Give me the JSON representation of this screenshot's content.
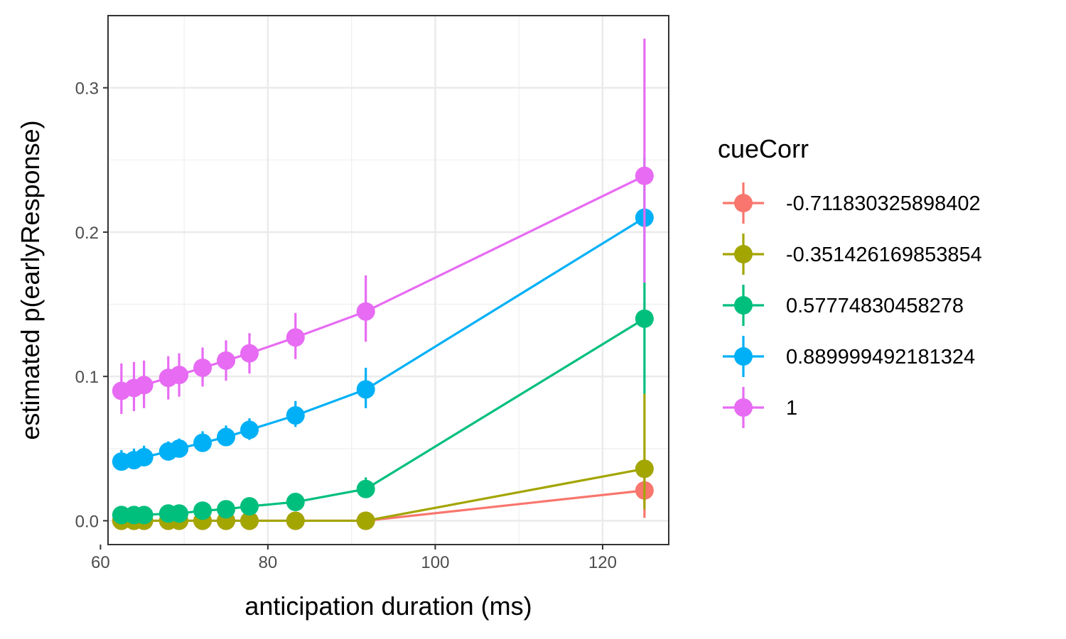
{
  "chart_data": {
    "type": "line",
    "title": "",
    "xlabel": "anticipation duration (ms)",
    "ylabel": "estimated p(earlyResponse)",
    "xlim": [
      60.9,
      127.9
    ],
    "ylim": [
      -0.0165,
      0.35
    ],
    "x_ticks": [
      60,
      80,
      100,
      120
    ],
    "y_ticks": [
      0.0,
      0.1,
      0.2,
      0.3
    ],
    "x_tick_labels": [
      "60",
      "80",
      "100",
      "120"
    ],
    "y_tick_labels": [
      "0.0",
      "0.1",
      "0.2",
      "0.3"
    ],
    "grid": true,
    "legend_position": "right",
    "legend_title": "cueCorr",
    "x": [
      62.5,
      64.0,
      65.2,
      68.1,
      69.4,
      72.2,
      75.0,
      77.8,
      83.3,
      91.7,
      125.0
    ],
    "series": [
      {
        "name": "-0.711830325898402",
        "color": "#F8766D",
        "x": [
          62.5,
          64.0,
          65.2,
          68.1,
          69.4,
          72.2,
          75.0,
          77.8,
          83.3,
          91.7,
          125.0
        ],
        "values": [
          0,
          0,
          0,
          0,
          0,
          0,
          0,
          0,
          0,
          0,
          0.021
        ],
        "lower": [
          0,
          0,
          0,
          0,
          0,
          0,
          0,
          0,
          0,
          0,
          0.002
        ],
        "upper": [
          0,
          0,
          0,
          0,
          0,
          0,
          0,
          0,
          0,
          0,
          0.038
        ]
      },
      {
        "name": "-0.351426169853854",
        "color": "#A3A500",
        "x": [
          62.5,
          64.0,
          65.2,
          68.1,
          69.4,
          72.2,
          75.0,
          77.8,
          83.3,
          91.7,
          125.0
        ],
        "values": [
          0,
          0,
          0,
          0,
          0,
          0,
          0,
          0,
          0,
          0,
          0.036
        ],
        "lower": [
          0,
          0,
          0,
          0,
          0,
          0,
          0,
          0,
          0,
          0,
          0.008
        ],
        "upper": [
          0,
          0,
          0,
          0,
          0,
          0,
          0,
          0,
          0,
          0,
          0.088
        ]
      },
      {
        "name": "0.57774830458278",
        "color": "#00BF7D",
        "x": [
          62.5,
          64.0,
          65.2,
          68.1,
          69.4,
          72.2,
          75.0,
          77.8,
          83.3,
          91.7,
          125.0
        ],
        "values": [
          0.004,
          0.004,
          0.004,
          0.005,
          0.005,
          0.007,
          0.008,
          0.01,
          0.013,
          0.022,
          0.14
        ],
        "lower": [
          0.002,
          0.002,
          0.002,
          0.003,
          0.003,
          0.004,
          0.005,
          0.006,
          0.009,
          0.016,
          0.088
        ],
        "upper": [
          0.006,
          0.006,
          0.006,
          0.007,
          0.007,
          0.009,
          0.011,
          0.013,
          0.017,
          0.03,
          0.165
        ]
      },
      {
        "name": "0.889999492181324",
        "color": "#00B0F6",
        "x": [
          62.5,
          64.0,
          65.2,
          68.1,
          69.4,
          72.2,
          75.0,
          77.8,
          83.3,
          91.7,
          125.0
        ],
        "values": [
          0.041,
          0.042,
          0.044,
          0.048,
          0.05,
          0.054,
          0.058,
          0.063,
          0.073,
          0.091,
          0.21
        ],
        "lower": [
          0.035,
          0.036,
          0.038,
          0.042,
          0.044,
          0.048,
          0.052,
          0.056,
          0.065,
          0.078,
          0.165
        ],
        "upper": [
          0.049,
          0.05,
          0.052,
          0.055,
          0.057,
          0.062,
          0.066,
          0.071,
          0.083,
          0.106,
          0.252
        ]
      },
      {
        "name": "1",
        "color": "#E76BF3",
        "x": [
          62.5,
          64.0,
          65.2,
          68.1,
          69.4,
          72.2,
          75.0,
          77.8,
          83.3,
          91.7,
          125.0
        ],
        "values": [
          0.09,
          0.092,
          0.094,
          0.099,
          0.101,
          0.106,
          0.111,
          0.116,
          0.127,
          0.145,
          0.239
        ],
        "lower": [
          0.074,
          0.076,
          0.078,
          0.084,
          0.086,
          0.093,
          0.097,
          0.102,
          0.112,
          0.124,
          0.165
        ],
        "upper": [
          0.109,
          0.11,
          0.111,
          0.114,
          0.116,
          0.12,
          0.125,
          0.13,
          0.144,
          0.17,
          0.334
        ]
      }
    ]
  }
}
